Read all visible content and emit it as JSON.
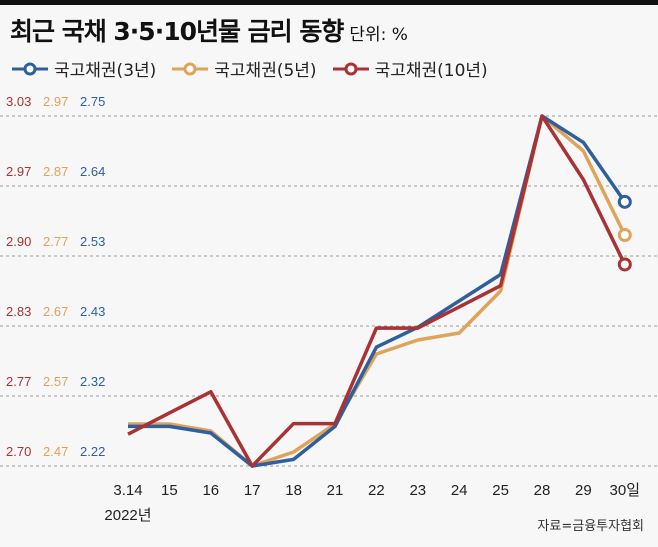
{
  "chart_data": {
    "type": "line",
    "title": "최근 국채 3·5·10년물 금리 동향",
    "unit": "단위: %",
    "categories": [
      "3.14",
      "15",
      "16",
      "17",
      "18",
      "21",
      "22",
      "23",
      "24",
      "25",
      "28",
      "29",
      "30일"
    ],
    "year_label": "2022년",
    "source": "자료=금융투자협회",
    "series": [
      {
        "name": "국고채권(3년)",
        "color": "#2e5f9e",
        "ylim": [
          2.22,
          2.75
        ],
        "ticks": [
          "2.22",
          "2.32",
          "2.43",
          "2.53",
          "2.64",
          "2.75"
        ],
        "values": [
          2.28,
          2.28,
          2.27,
          2.22,
          2.23,
          2.28,
          2.4,
          2.43,
          2.47,
          2.51,
          2.75,
          2.71,
          2.62
        ]
      },
      {
        "name": "국고채권(5년)",
        "color": "#e0a35a",
        "ylim": [
          2.47,
          2.97
        ],
        "ticks": [
          "2.47",
          "2.57",
          "2.67",
          "2.77",
          "2.87",
          "2.97"
        ],
        "values": [
          2.53,
          2.53,
          2.52,
          2.47,
          2.49,
          2.53,
          2.63,
          2.65,
          2.66,
          2.72,
          2.97,
          2.92,
          2.8
        ]
      },
      {
        "name": "국고채권(10년)",
        "color": "#a93234",
        "ylim": [
          2.7,
          3.03
        ],
        "ticks": [
          "2.70",
          "2.77",
          "2.83",
          "2.90",
          "2.97",
          "3.03"
        ],
        "values": [
          2.73,
          2.75,
          2.77,
          2.7,
          2.74,
          2.74,
          2.83,
          2.83,
          2.85,
          2.87,
          3.03,
          2.97,
          2.89
        ]
      }
    ]
  }
}
